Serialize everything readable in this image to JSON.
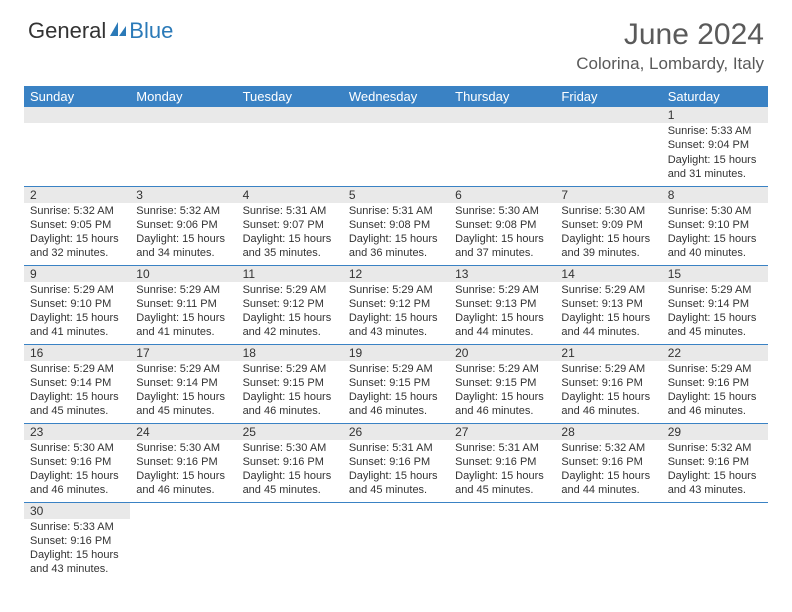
{
  "logo": {
    "part1": "General",
    "part2": "Blue"
  },
  "title": "June 2024",
  "location": "Colorina, Lombardy, Italy",
  "colors": {
    "header_bg": "#3a82c4",
    "header_text": "#ffffff",
    "daynum_bg": "#e9e9e9",
    "border": "#3a82c4",
    "text": "#333333",
    "title_text": "#5a5a5a"
  },
  "dayNames": [
    "Sunday",
    "Monday",
    "Tuesday",
    "Wednesday",
    "Thursday",
    "Friday",
    "Saturday"
  ],
  "weeks": [
    [
      null,
      null,
      null,
      null,
      null,
      null,
      {
        "n": "1",
        "sr": "5:33 AM",
        "ss": "9:04 PM",
        "dl": "15 hours and 31 minutes."
      }
    ],
    [
      {
        "n": "2",
        "sr": "5:32 AM",
        "ss": "9:05 PM",
        "dl": "15 hours and 32 minutes."
      },
      {
        "n": "3",
        "sr": "5:32 AM",
        "ss": "9:06 PM",
        "dl": "15 hours and 34 minutes."
      },
      {
        "n": "4",
        "sr": "5:31 AM",
        "ss": "9:07 PM",
        "dl": "15 hours and 35 minutes."
      },
      {
        "n": "5",
        "sr": "5:31 AM",
        "ss": "9:08 PM",
        "dl": "15 hours and 36 minutes."
      },
      {
        "n": "6",
        "sr": "5:30 AM",
        "ss": "9:08 PM",
        "dl": "15 hours and 37 minutes."
      },
      {
        "n": "7",
        "sr": "5:30 AM",
        "ss": "9:09 PM",
        "dl": "15 hours and 39 minutes."
      },
      {
        "n": "8",
        "sr": "5:30 AM",
        "ss": "9:10 PM",
        "dl": "15 hours and 40 minutes."
      }
    ],
    [
      {
        "n": "9",
        "sr": "5:29 AM",
        "ss": "9:10 PM",
        "dl": "15 hours and 41 minutes."
      },
      {
        "n": "10",
        "sr": "5:29 AM",
        "ss": "9:11 PM",
        "dl": "15 hours and 41 minutes."
      },
      {
        "n": "11",
        "sr": "5:29 AM",
        "ss": "9:12 PM",
        "dl": "15 hours and 42 minutes."
      },
      {
        "n": "12",
        "sr": "5:29 AM",
        "ss": "9:12 PM",
        "dl": "15 hours and 43 minutes."
      },
      {
        "n": "13",
        "sr": "5:29 AM",
        "ss": "9:13 PM",
        "dl": "15 hours and 44 minutes."
      },
      {
        "n": "14",
        "sr": "5:29 AM",
        "ss": "9:13 PM",
        "dl": "15 hours and 44 minutes."
      },
      {
        "n": "15",
        "sr": "5:29 AM",
        "ss": "9:14 PM",
        "dl": "15 hours and 45 minutes."
      }
    ],
    [
      {
        "n": "16",
        "sr": "5:29 AM",
        "ss": "9:14 PM",
        "dl": "15 hours and 45 minutes."
      },
      {
        "n": "17",
        "sr": "5:29 AM",
        "ss": "9:14 PM",
        "dl": "15 hours and 45 minutes."
      },
      {
        "n": "18",
        "sr": "5:29 AM",
        "ss": "9:15 PM",
        "dl": "15 hours and 46 minutes."
      },
      {
        "n": "19",
        "sr": "5:29 AM",
        "ss": "9:15 PM",
        "dl": "15 hours and 46 minutes."
      },
      {
        "n": "20",
        "sr": "5:29 AM",
        "ss": "9:15 PM",
        "dl": "15 hours and 46 minutes."
      },
      {
        "n": "21",
        "sr": "5:29 AM",
        "ss": "9:16 PM",
        "dl": "15 hours and 46 minutes."
      },
      {
        "n": "22",
        "sr": "5:29 AM",
        "ss": "9:16 PM",
        "dl": "15 hours and 46 minutes."
      }
    ],
    [
      {
        "n": "23",
        "sr": "5:30 AM",
        "ss": "9:16 PM",
        "dl": "15 hours and 46 minutes."
      },
      {
        "n": "24",
        "sr": "5:30 AM",
        "ss": "9:16 PM",
        "dl": "15 hours and 46 minutes."
      },
      {
        "n": "25",
        "sr": "5:30 AM",
        "ss": "9:16 PM",
        "dl": "15 hours and 45 minutes."
      },
      {
        "n": "26",
        "sr": "5:31 AM",
        "ss": "9:16 PM",
        "dl": "15 hours and 45 minutes."
      },
      {
        "n": "27",
        "sr": "5:31 AM",
        "ss": "9:16 PM",
        "dl": "15 hours and 45 minutes."
      },
      {
        "n": "28",
        "sr": "5:32 AM",
        "ss": "9:16 PM",
        "dl": "15 hours and 44 minutes."
      },
      {
        "n": "29",
        "sr": "5:32 AM",
        "ss": "9:16 PM",
        "dl": "15 hours and 43 minutes."
      }
    ],
    [
      {
        "n": "30",
        "sr": "5:33 AM",
        "ss": "9:16 PM",
        "dl": "15 hours and 43 minutes."
      },
      null,
      null,
      null,
      null,
      null,
      null
    ]
  ],
  "labels": {
    "sunrise": "Sunrise:",
    "sunset": "Sunset:",
    "daylight": "Daylight:"
  }
}
